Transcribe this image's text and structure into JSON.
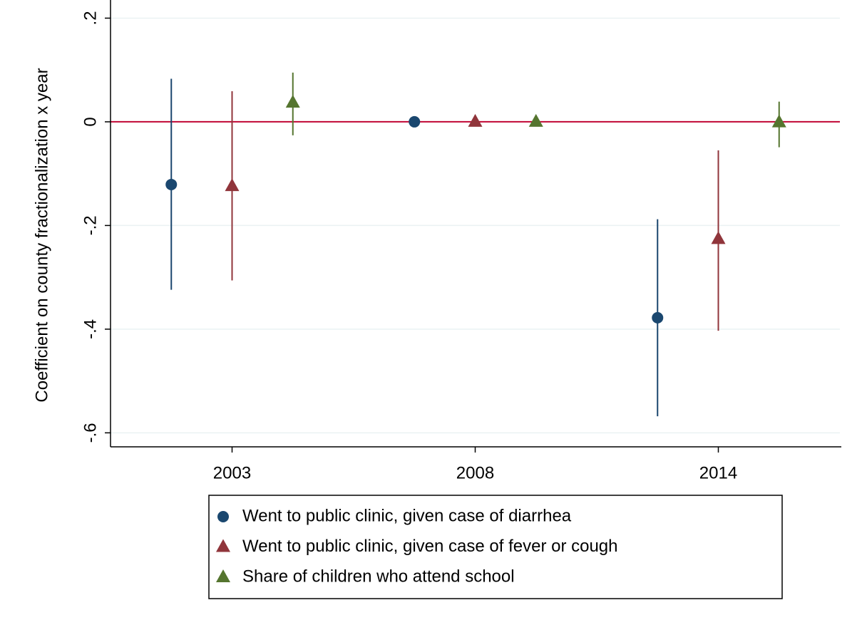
{
  "chart_data": {
    "type": "coefplot",
    "y_label": "Coefficient on county fractionalization x year",
    "categories": [
      "2003",
      "2008",
      "2014"
    ],
    "series": [
      {
        "name": "Went to public clinic, given case of diarrhea",
        "color": "#1a476f",
        "marker": "circle",
        "values": [
          -0.121,
          0,
          -0.378
        ],
        "lower": [
          -0.324,
          null,
          -0.568
        ],
        "upper": [
          0.083,
          null,
          -0.188
        ]
      },
      {
        "name": "Went to public clinic, given case of fever or cough",
        "color": "#90353b",
        "marker": "triangle",
        "values": [
          -0.124,
          0,
          -0.226
        ],
        "lower": [
          -0.306,
          null,
          -0.403
        ],
        "upper": [
          0.059,
          null,
          -0.055
        ]
      },
      {
        "name": "Share of children who attend school",
        "color": "#55752f",
        "marker": "triangle",
        "values": [
          0.037,
          0,
          -0.001
        ],
        "lower": [
          -0.026,
          null,
          -0.049
        ],
        "upper": [
          0.095,
          null,
          0.039
        ]
      }
    ],
    "ylim": [
      -0.627,
      0.235
    ],
    "yticks": [
      {
        "value": 0.2,
        "label": ".2"
      },
      0,
      {
        "value": -0.2,
        "label": "-.2"
      },
      {
        "value": -0.4,
        "label": "-.4"
      },
      {
        "value": -0.6,
        "label": "-.6"
      }
    ],
    "reference_line": {
      "value": 0,
      "color": "#c10534"
    },
    "grid": true
  }
}
